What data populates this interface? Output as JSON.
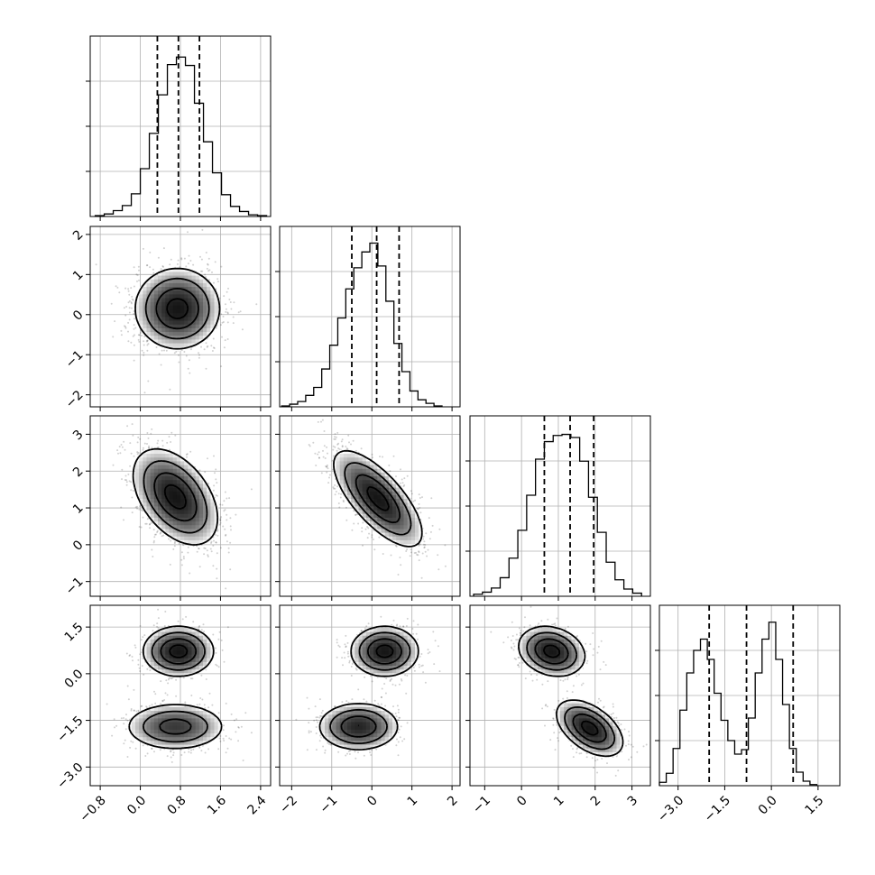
{
  "figure": {
    "type": "corner_plot",
    "background": "#ffffff",
    "ink": "#000000",
    "grid_color": "#b0b0b0"
  },
  "chart_data": {
    "type": "corner",
    "n_params": 4,
    "axis_labels": [
      "",
      "",
      "",
      ""
    ],
    "params": [
      {
        "range": [
          -1.0,
          2.6
        ],
        "ticks": [
          -0.8,
          0.0,
          0.8,
          1.6,
          2.4
        ],
        "tick_labels": [
          "−0.8",
          "0.0",
          "0.8",
          "1.6",
          "2.4"
        ]
      },
      {
        "range": [
          -2.3,
          2.2
        ],
        "ticks": [
          -2,
          -1,
          0,
          1,
          2
        ],
        "tick_labels": [
          "−2",
          "−1",
          "0",
          "1",
          "2"
        ]
      },
      {
        "range": [
          -1.4,
          3.5
        ],
        "ticks": [
          -1,
          0,
          1,
          2,
          3
        ],
        "tick_labels": [
          "−1",
          "0",
          "1",
          "2",
          "3"
        ]
      },
      {
        "range": [
          -3.6,
          2.2
        ],
        "ticks": [
          -3.0,
          -1.5,
          0.0,
          1.5
        ],
        "tick_labels": [
          "−3.0",
          "−1.5",
          "0.0",
          "1.5"
        ]
      }
    ],
    "histograms": [
      {
        "param": 0,
        "bins": {
          "start": -0.9,
          "width": 0.18,
          "counts": [
            1,
            3,
            7,
            13,
            27,
            57,
            99,
            145,
            181,
            190,
            180,
            135,
            89,
            52,
            26,
            12,
            6,
            2,
            1
          ]
        },
        "ymax": 215,
        "quantiles": [
          0.34,
          0.76,
          1.18
        ]
      },
      {
        "param": 1,
        "bins": {
          "start": -2.25,
          "width": 0.2,
          "counts": [
            1,
            3,
            6,
            13,
            22,
            43,
            70,
            101,
            134,
            158,
            176,
            186,
            160,
            120,
            72,
            40,
            18,
            8,
            4,
            1
          ]
        },
        "ymax": 205,
        "quantiles": [
          -0.5,
          0.12,
          0.68
        ]
      },
      {
        "param": 2,
        "bins": {
          "start": -1.3,
          "width": 0.24,
          "counts": [
            2,
            4,
            8,
            18,
            37,
            64,
            98,
            133,
            150,
            156,
            157,
            154,
            131,
            96,
            62,
            33,
            16,
            7,
            3
          ]
        },
        "ymax": 175,
        "quantiles": [
          0.62,
          1.32,
          1.96
        ]
      },
      {
        "param": 3,
        "bins": {
          "start": -3.6,
          "width": 0.22,
          "counts": [
            3,
            11,
            33,
            67,
            100,
            120,
            130,
            112,
            82,
            58,
            40,
            28,
            32,
            60,
            100,
            130,
            145,
            112,
            72,
            33,
            12,
            4,
            1
          ]
        },
        "ymax": 160,
        "quantiles": [
          -2.0,
          -0.8,
          0.7
        ]
      }
    ],
    "pairs": [
      {
        "x": 0,
        "y": 1,
        "blobs": [
          {
            "cx": 0.74,
            "cy": 0.15,
            "sx": 0.42,
            "sy": 0.5,
            "rho": 0.0,
            "w": 1
          }
        ]
      },
      {
        "x": 0,
        "y": 2,
        "blobs": [
          {
            "cx": 0.7,
            "cy": 1.3,
            "sx": 0.42,
            "sy": 0.65,
            "rho": -0.45,
            "w": 1
          }
        ]
      },
      {
        "x": 1,
        "y": 2,
        "blobs": [
          {
            "cx": 0.15,
            "cy": 1.25,
            "sx": 0.55,
            "sy": 0.65,
            "rho": -0.72,
            "w": 1
          }
        ]
      },
      {
        "x": 0,
        "y": 3,
        "blobs": [
          {
            "cx": 0.76,
            "cy": 0.72,
            "sx": 0.35,
            "sy": 0.4,
            "rho": 0.0,
            "w": 0.5
          },
          {
            "cx": 0.7,
            "cy": -1.7,
            "sx": 0.5,
            "sy": 0.38,
            "rho": 0.0,
            "w": 0.5
          }
        ]
      },
      {
        "x": 1,
        "y": 3,
        "blobs": [
          {
            "cx": 0.32,
            "cy": 0.72,
            "sx": 0.42,
            "sy": 0.4,
            "rho": 0.0,
            "w": 0.5
          },
          {
            "cx": -0.33,
            "cy": -1.7,
            "sx": 0.5,
            "sy": 0.38,
            "rho": 0.0,
            "w": 0.5
          }
        ]
      },
      {
        "x": 2,
        "y": 3,
        "blobs": [
          {
            "cx": 0.82,
            "cy": 0.72,
            "sx": 0.45,
            "sy": 0.4,
            "rho": -0.2,
            "w": 0.5
          },
          {
            "cx": 1.85,
            "cy": -1.75,
            "sx": 0.45,
            "sy": 0.45,
            "rho": -0.5,
            "w": 0.5
          }
        ]
      }
    ],
    "contour_levels_sigma": [
      0.5,
      1.0,
      1.5,
      2.0
    ],
    "scatter_points_per_panel": 1400
  }
}
